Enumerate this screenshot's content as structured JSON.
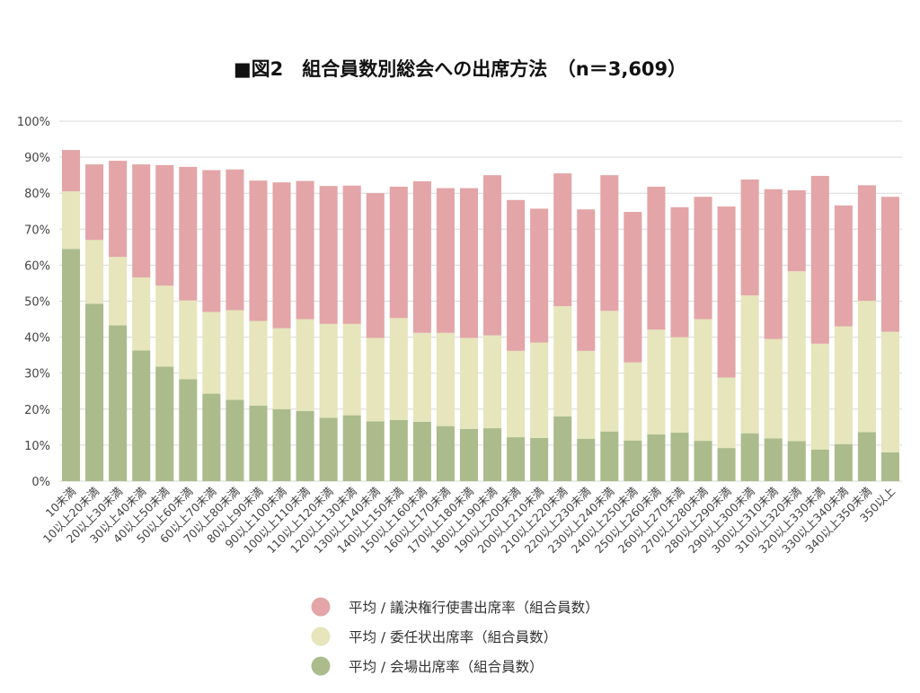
{
  "chart_data": {
    "type": "bar",
    "stacked": true,
    "title": "■図2　組合員数別総会への出席方法　（n＝3,609）",
    "xlabel": "",
    "ylabel": "",
    "ylim": [
      0,
      100
    ],
    "yticks": [
      "0%",
      "10%",
      "20%",
      "30%",
      "40%",
      "50%",
      "60%",
      "70%",
      "80%",
      "90%",
      "100%"
    ],
    "grid": true,
    "legend_position": "bottom",
    "categories": [
      "10未満",
      "10以上20未満",
      "20以上30未満",
      "30以上40未満",
      "40以上50未満",
      "50以上60未満",
      "60以上70未満",
      "70以上80未満",
      "80以上90未満",
      "90以上100未満",
      "100以上110未満",
      "110以上120未満",
      "120以上130未満",
      "130以上140未満",
      "140以上150未満",
      "150以上160未満",
      "160以上170未満",
      "170以上180未満",
      "180以上190未満",
      "190以上200未満",
      "200以上210未満",
      "210以上220未満",
      "220以上230未満",
      "230以上240未満",
      "240以上250未満",
      "250以上260未満",
      "260以上270未満",
      "270以上280未満",
      "280以上290未満",
      "290以上300未満",
      "300以上310未満",
      "310以上320未満",
      "320以上330未満",
      "330以上340未満",
      "340以上350未満",
      "350以上"
    ],
    "series": [
      {
        "name": "平均 / 会場出席率（組合員数）",
        "color": "#abbb8c",
        "values": [
          64.5,
          49.3,
          43.3,
          36.3,
          31.8,
          28.3,
          24.3,
          22.6,
          21.0,
          20.0,
          19.5,
          17.6,
          18.3,
          16.6,
          17.0,
          16.5,
          15.3,
          14.5,
          14.7,
          12.2,
          12.0,
          18.0,
          11.8,
          13.8,
          11.3,
          13.0,
          13.5,
          11.2,
          9.2,
          13.3,
          11.9,
          11.1,
          8.8,
          10.3,
          13.6,
          8.0
        ]
      },
      {
        "name": "平均 / 委任状出席率（組合員数）",
        "color": "#e6e5bb",
        "values": [
          16.0,
          17.7,
          19.0,
          20.3,
          22.5,
          21.9,
          22.7,
          24.9,
          23.5,
          22.5,
          25.5,
          26.1,
          25.4,
          23.2,
          28.3,
          24.7,
          25.9,
          25.3,
          25.8,
          24.0,
          26.5,
          30.6,
          24.4,
          33.5,
          21.7,
          29.1,
          26.5,
          33.8,
          19.6,
          38.3,
          27.6,
          47.2,
          29.4,
          32.7,
          36.5,
          33.5
        ]
      },
      {
        "name": "平均 / 議決権行使書出席率（組合員数）",
        "color": "#e3a5a7",
        "values": [
          11.5,
          21.0,
          26.7,
          31.4,
          33.5,
          37.1,
          39.4,
          39.1,
          39.0,
          40.5,
          38.4,
          38.3,
          38.4,
          40.2,
          36.5,
          42.1,
          40.2,
          41.6,
          44.5,
          41.9,
          37.2,
          36.9,
          39.3,
          37.7,
          41.8,
          39.7,
          36.1,
          34.0,
          47.5,
          32.2,
          41.6,
          22.5,
          46.6,
          33.6,
          32.1,
          37.5
        ]
      }
    ],
    "legend_order": [
      2,
      1,
      0
    ]
  }
}
